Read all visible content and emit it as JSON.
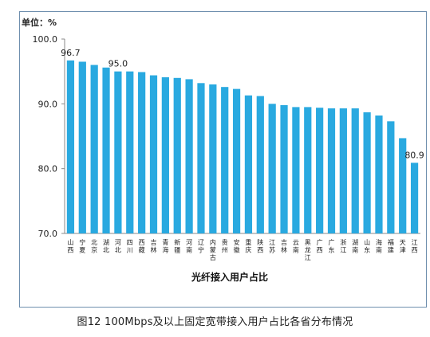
{
  "chart_data": {
    "type": "bar",
    "unit_label": "单位：%",
    "xlabel": "光纤接入用户占比",
    "ylabel": "",
    "ylim": [
      70,
      100
    ],
    "yticks": [
      "100.0",
      "90.0",
      "80.0",
      "70.0"
    ],
    "ytick_values": [
      100,
      90,
      80,
      70
    ],
    "bar_color": "#29a9e0",
    "categories": [
      "山西",
      "宁夏",
      "北京",
      "湖北",
      "河北",
      "四川",
      "西藏",
      "吉林",
      "青海",
      "新疆",
      "河南",
      "辽宁",
      "内蒙古",
      "贵州",
      "安徽",
      "重庆",
      "陕西",
      "江苏",
      "吉林",
      "云南",
      "黑龙江",
      "广西",
      "广东",
      "浙江",
      "湖南",
      "山东",
      "海南",
      "福建",
      "天津",
      "江西"
    ],
    "values": [
      96.7,
      96.5,
      96.0,
      95.6,
      95.0,
      95.0,
      94.9,
      94.4,
      94.1,
      94.0,
      93.8,
      93.2,
      93.0,
      92.6,
      92.3,
      91.3,
      91.2,
      90.0,
      89.8,
      89.5,
      89.5,
      89.4,
      89.3,
      89.3,
      89.3,
      88.7,
      88.2,
      87.3,
      84.7,
      80.9
    ],
    "data_labels": [
      {
        "index": 0,
        "text": "96.7"
      },
      {
        "index": 4,
        "text": "95.0"
      },
      {
        "index": 29,
        "text": "80.9"
      }
    ]
  },
  "caption": "图12 100Mbps及以上固定宽带接入用户占比各省分布情况"
}
